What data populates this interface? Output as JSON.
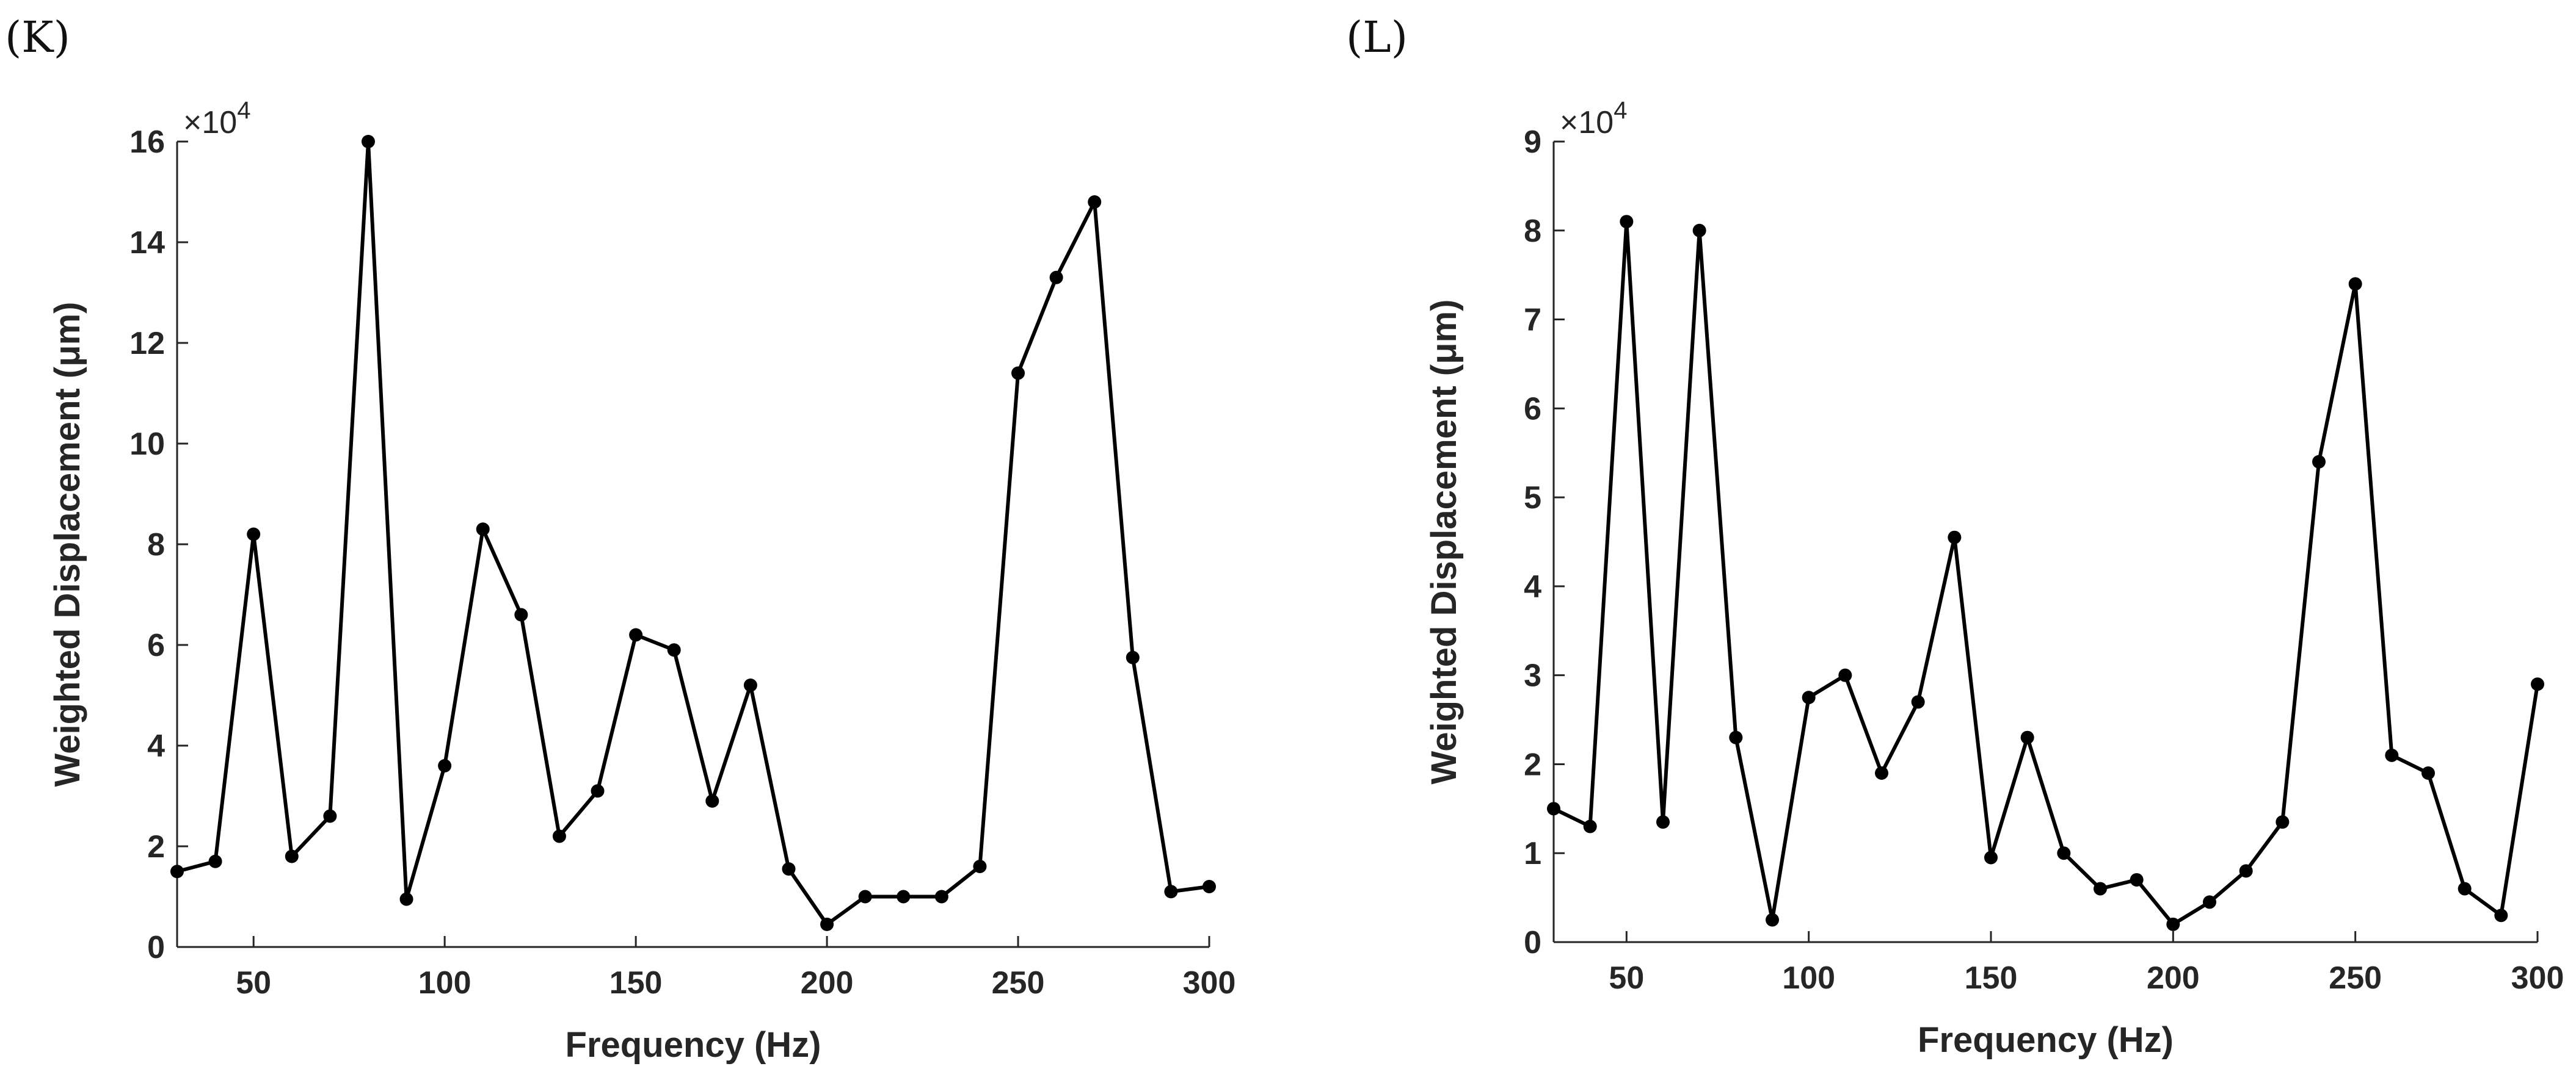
{
  "chart_data": [
    {
      "type": "line",
      "panel_label": "(K)",
      "xlabel": "Frequency (Hz)",
      "ylabel": "Weighted Displacement (μm)",
      "y_multiplier_label": "×10",
      "y_multiplier_exponent": "4",
      "xlim": [
        30,
        300
      ],
      "ylim": [
        0,
        16
      ],
      "xticks": [
        50,
        100,
        150,
        200,
        250,
        300
      ],
      "yticks": [
        0,
        2,
        4,
        6,
        8,
        10,
        12,
        14,
        16
      ],
      "x": [
        30,
        40,
        50,
        60,
        70,
        80,
        90,
        100,
        110,
        120,
        130,
        140,
        150,
        160,
        170,
        180,
        190,
        200,
        210,
        220,
        230,
        240,
        250,
        260,
        270,
        280,
        290,
        300
      ],
      "series": [
        {
          "name": "Weighted Displacement",
          "values": [
            1.5,
            1.7,
            8.2,
            1.8,
            2.6,
            16.0,
            0.95,
            3.6,
            8.3,
            6.6,
            2.2,
            3.1,
            6.2,
            5.9,
            2.9,
            5.2,
            1.55,
            0.45,
            1.0,
            1.0,
            1.0,
            1.6,
            11.4,
            13.3,
            14.8,
            5.75,
            1.1,
            1.2
          ]
        }
      ]
    },
    {
      "type": "line",
      "panel_label": "(L)",
      "xlabel": "Frequency (Hz)",
      "ylabel": "Weighted Displacement (μm)",
      "y_multiplier_label": "×10",
      "y_multiplier_exponent": "4",
      "xlim": [
        30,
        300
      ],
      "ylim": [
        0,
        9
      ],
      "xticks": [
        50,
        100,
        150,
        200,
        250,
        300
      ],
      "yticks": [
        0,
        1,
        2,
        3,
        4,
        5,
        6,
        7,
        8,
        9
      ],
      "x": [
        30,
        40,
        50,
        60,
        70,
        80,
        90,
        100,
        110,
        120,
        130,
        140,
        150,
        160,
        170,
        180,
        190,
        200,
        210,
        220,
        230,
        240,
        250,
        260,
        270,
        280,
        290,
        300
      ],
      "series": [
        {
          "name": "Weighted Displacement",
          "values": [
            1.5,
            1.3,
            8.1,
            1.35,
            8.0,
            2.3,
            0.25,
            2.75,
            3.0,
            1.9,
            2.7,
            4.55,
            0.95,
            2.3,
            1.0,
            0.6,
            0.7,
            0.2,
            0.45,
            0.8,
            1.35,
            5.4,
            7.4,
            2.1,
            1.9,
            0.6,
            0.3,
            2.9
          ]
        }
      ]
    }
  ]
}
